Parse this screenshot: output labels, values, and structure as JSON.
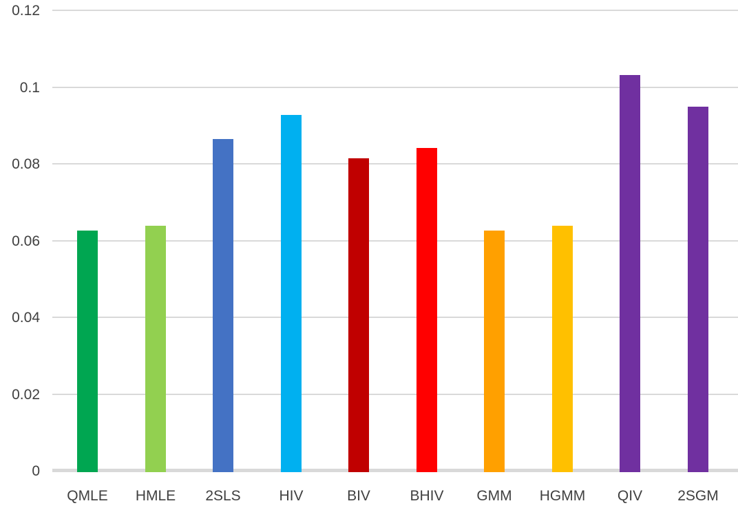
{
  "chart_data": {
    "type": "bar",
    "title": "",
    "xlabel": "",
    "ylabel": "",
    "categories": [
      "QMLE",
      "HMLE",
      "2SLS",
      "HIV",
      "BIV",
      "BHIV",
      "GMM",
      "HGMM",
      "QIV",
      "2SGM"
    ],
    "values": [
      0.063,
      0.0643,
      0.0868,
      0.0931,
      0.0818,
      0.0845,
      0.063,
      0.0643,
      0.1035,
      0.0953
    ],
    "bar_colors": [
      "#00A651",
      "#92D050",
      "#4472C4",
      "#00B0F0",
      "#C00000",
      "#FF0000",
      "#FFA000",
      "#FFC000",
      "#7030A0",
      "#7030A0"
    ],
    "ylim": [
      0,
      0.12
    ],
    "yticks": [
      {
        "value": 0,
        "label": "0"
      },
      {
        "value": 0.02,
        "label": "0.02"
      },
      {
        "value": 0.04,
        "label": "0.04"
      },
      {
        "value": 0.06,
        "label": "0.06"
      },
      {
        "value": 0.08,
        "label": "0.08"
      },
      {
        "value": 0.1,
        "label": "0.1"
      },
      {
        "value": 0.12,
        "label": "0.12"
      }
    ],
    "grid": true,
    "legend": "none",
    "gridline_color": "#D9D9D9",
    "axis_line_color": "#D9D9D9",
    "tick_label_color": "#404040",
    "background": "#FFFFFF"
  }
}
